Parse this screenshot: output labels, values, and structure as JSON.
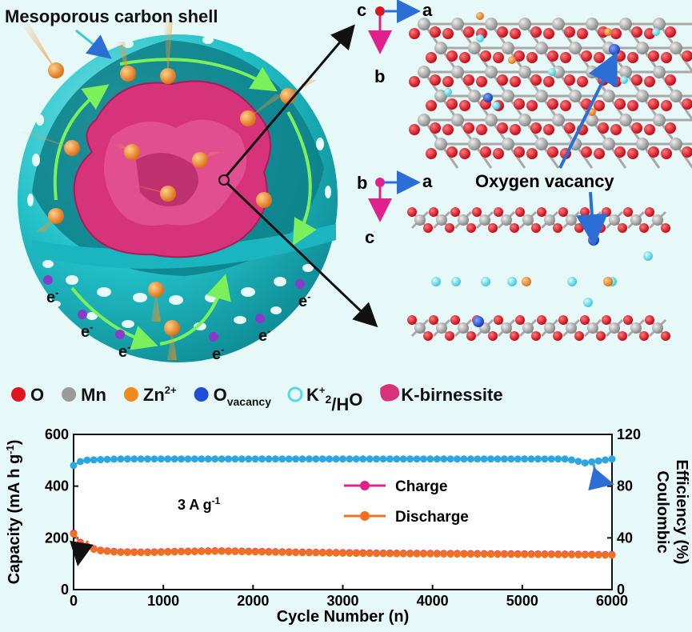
{
  "schematic": {
    "shell_label": "Mesoporous carbon shell",
    "electron_label": "e",
    "electron_sup": "-",
    "oxygen_vacancy_label": "Oxygen vacancy",
    "axes_top": {
      "c": "c",
      "a": "a",
      "b": "b"
    },
    "axes_bottom": {
      "b": "b",
      "a": "a",
      "c": "c"
    }
  },
  "legend": [
    {
      "label": "O",
      "color": "#e0141e",
      "icon": "dot-icon"
    },
    {
      "label": "Mn",
      "color": "#9a9a9a",
      "icon": "dot-icon"
    },
    {
      "label": "Zn",
      "sup": "2+",
      "color": "#f08a1e",
      "icon": "dot-icon"
    },
    {
      "label": "O",
      "sub": "vacancy",
      "color": "#1a4fd6",
      "icon": "dot-icon"
    },
    {
      "label": "K",
      "sup": "+",
      "tail": "/H",
      "sub": "2",
      "tail2": "O",
      "color": "#58d8e8",
      "icon": "ring-icon"
    },
    {
      "label": "K-birnessite",
      "color": "#d6337a",
      "icon": "blob-icon"
    }
  ],
  "colors": {
    "charge": "#e0208c",
    "discharge": "#f07020",
    "efficiency": "#2aa7e0",
    "shell": "#1fc2c8",
    "birnessite": "#d6337a"
  },
  "chart_data": {
    "type": "scatter",
    "xlabel": "Cycle Number (n)",
    "ylabel": "Capacity (mA h g",
    "ylabel_sup": "-1",
    "ylabel_tail": ")",
    "y2label_line1": "Coulombic",
    "y2label_line2": "Efficiency (%)",
    "annotation": "3 A g",
    "annotation_sup": "-1",
    "xlim": [
      0,
      6000
    ],
    "ylim": [
      0,
      600
    ],
    "y2lim": [
      0,
      120
    ],
    "xticks": [
      0,
      1000,
      2000,
      3000,
      4000,
      5000,
      6000
    ],
    "yticks": [
      0,
      200,
      400,
      600
    ],
    "y2ticks": [
      0,
      40,
      80,
      120
    ],
    "legend_position": "center-right",
    "series": [
      {
        "name": "Charge",
        "axis": "left",
        "x": [
          0,
          50,
          100,
          200,
          300,
          500,
          800,
          1200,
          1600,
          2000,
          2500,
          3000,
          3500,
          4000,
          4500,
          5000,
          5500,
          6000
        ],
        "values": [
          218,
          190,
          175,
          160,
          152,
          146,
          145,
          148,
          150,
          148,
          145,
          143,
          141,
          140,
          139,
          138,
          137,
          135
        ]
      },
      {
        "name": "Discharge",
        "axis": "left",
        "x": [
          0,
          50,
          100,
          200,
          300,
          500,
          800,
          1200,
          1600,
          2000,
          2500,
          3000,
          3500,
          4000,
          4500,
          5000,
          5500,
          6000
        ],
        "values": [
          215,
          186,
          172,
          158,
          150,
          144,
          143,
          146,
          148,
          146,
          143,
          141,
          139,
          138,
          137,
          136,
          135,
          133
        ]
      },
      {
        "name": "",
        "axis": "right",
        "x": [
          0,
          100,
          500,
          1000,
          1500,
          2000,
          2500,
          3000,
          3500,
          4000,
          4500,
          5000,
          5500,
          5700,
          6000
        ],
        "values": [
          96,
          100,
          101,
          101,
          101,
          101,
          101,
          101,
          101,
          101,
          101,
          101,
          101,
          98,
          101
        ]
      }
    ]
  }
}
